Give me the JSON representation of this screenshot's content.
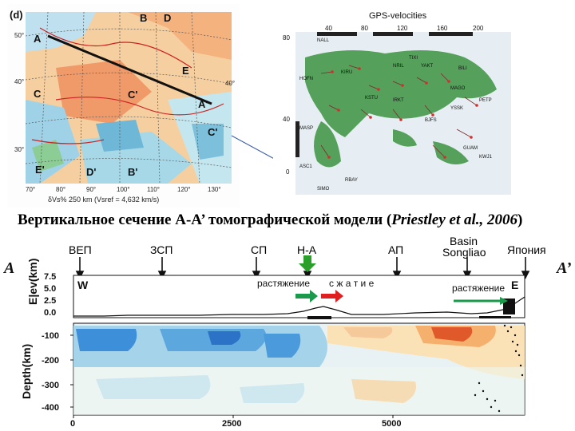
{
  "left_map": {
    "panel_letter": "(d)",
    "point_labels": [
      "B",
      "D",
      "A",
      "E",
      "C",
      "C'",
      "A'",
      "C'",
      "E'",
      "D'",
      "B'"
    ],
    "lat_ticks": [
      "50°",
      "40°",
      "40°",
      "30°"
    ],
    "lon_ticks": [
      "70°",
      "80°",
      "90°",
      "100°",
      "110°",
      "120°",
      "130°"
    ],
    "caption": "δVs% 250 km (Vsref = 4,632 km/s)"
  },
  "right_map": {
    "title": "GPS-velocities",
    "x_ticks": [
      "40",
      "80",
      "120",
      "160",
      "200"
    ],
    "y_ticks": [
      "80",
      "40",
      "0"
    ],
    "stations": [
      "NALL",
      "HOFN",
      "KIRU",
      "NRIL",
      "YAKT",
      "TIXI",
      "BILI",
      "MAGO",
      "PETP",
      "YSSK",
      "KSTU",
      "IRKT",
      "BJFS",
      "MASP",
      "GUAM",
      "KWJ1",
      "ASC1",
      "RBAY",
      "SIMO"
    ]
  },
  "section_title": {
    "main": "Вертикальное сечение А-А’  томографической  модели ",
    "ref_open": "(",
    "ref": "Priestley et al., 2006",
    "ref_close": ")"
  },
  "profile": {
    "endpoint_left": "A",
    "endpoint_right": "A’",
    "regions": [
      "ВЕП",
      "ЗСП",
      "СП",
      "Н-А",
      "АП",
      "Basin",
      "Songliao",
      "Япония"
    ],
    "side_w": "W",
    "side_e": "E",
    "annotations": [
      "растяжение",
      "с ж а т и е",
      "растяжение"
    ],
    "elev_axis_label": "E|ev(km)",
    "elev_ticks": [
      "7.5",
      "5.0",
      "2.5",
      "0.0"
    ],
    "depth_axis_label": "Depth(km)",
    "depth_ticks": [
      "-100",
      "-200",
      "-300",
      "-400"
    ],
    "x_ticks": [
      "0",
      "2500",
      "5000"
    ],
    "colors": {
      "extension_arrow": "#1a9a4a",
      "compression_arrow": "#e02020"
    }
  }
}
